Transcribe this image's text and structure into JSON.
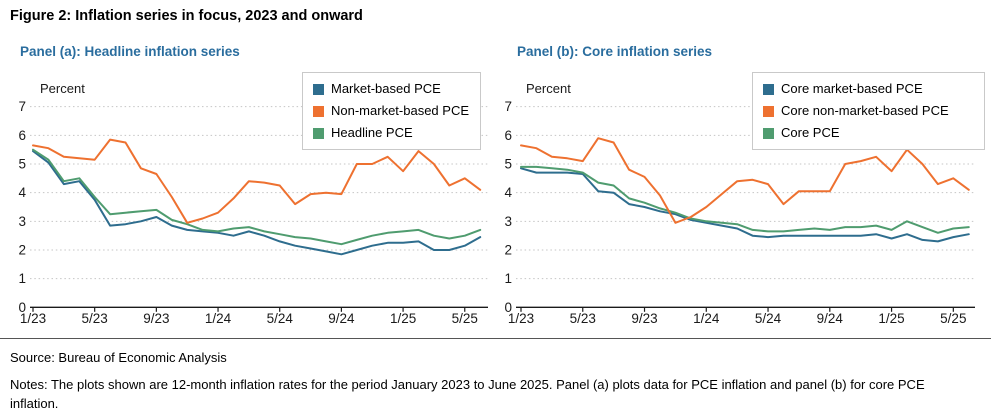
{
  "figure_title": "Figure 2: Inflation series in focus, 2023 and onward",
  "colors": {
    "panel_title": "#2a6d9e",
    "grid": "#c5c5c5",
    "axis": "#1a1a1a",
    "blue_series": "#2e6d8e",
    "orange_series": "#ee7130",
    "green_series": "#4f9c6f"
  },
  "footer": {
    "source": "Source: Bureau of Economic Analysis",
    "notes": "Notes: The plots shown are 12-month inflation rates for the period January 2023 to June 2025. Panel (a) plots data for PCE inflation and panel (b) for core PCE inflation."
  },
  "chart_data": [
    {
      "type": "line",
      "panel_title": "Panel (a): Headline inflation series",
      "ylabel": "Percent",
      "xlabel": "",
      "ylim": [
        0,
        7
      ],
      "yticks": [
        0,
        1,
        2,
        3,
        4,
        5,
        6,
        7
      ],
      "grid": "dotted-horizontal",
      "legend_position": "top-right",
      "x_start": "2023-01",
      "x_end": "2025-06",
      "x_tick_labels": [
        "1/23",
        "5/23",
        "9/23",
        "1/24",
        "5/24",
        "9/24",
        "1/25",
        "5/25"
      ],
      "series": [
        {
          "name": "Market-based PCE",
          "color": "#2e6d8e",
          "values": [
            5.45,
            5.05,
            4.3,
            4.4,
            3.75,
            2.85,
            2.9,
            3.0,
            3.15,
            2.85,
            2.7,
            2.65,
            2.6,
            2.5,
            2.65,
            2.5,
            2.3,
            2.15,
            2.05,
            1.95,
            1.85,
            2.0,
            2.15,
            2.25,
            2.25,
            2.3,
            2.0,
            2.0,
            2.15,
            2.45
          ]
        },
        {
          "name": "Non-market-based PCE",
          "color": "#ee7130",
          "values": [
            5.65,
            5.55,
            5.25,
            5.2,
            5.15,
            5.85,
            5.75,
            4.85,
            4.65,
            3.85,
            2.95,
            3.1,
            3.3,
            3.8,
            4.4,
            4.35,
            4.25,
            3.6,
            3.95,
            4.0,
            3.95,
            5.0,
            5.0,
            5.25,
            4.75,
            5.45,
            5.0,
            4.25,
            4.5,
            4.1
          ]
        },
        {
          "name": "Headline PCE",
          "color": "#4f9c6f",
          "values": [
            5.5,
            5.15,
            4.4,
            4.5,
            3.85,
            3.25,
            3.3,
            3.35,
            3.4,
            3.05,
            2.9,
            2.7,
            2.65,
            2.75,
            2.8,
            2.65,
            2.55,
            2.45,
            2.4,
            2.3,
            2.2,
            2.35,
            2.5,
            2.6,
            2.65,
            2.7,
            2.5,
            2.4,
            2.5,
            2.7
          ]
        }
      ]
    },
    {
      "type": "line",
      "panel_title": "Panel (b): Core inflation series",
      "ylabel": "Percent",
      "xlabel": "",
      "ylim": [
        0,
        7
      ],
      "yticks": [
        0,
        1,
        2,
        3,
        4,
        5,
        6,
        7
      ],
      "grid": "dotted-horizontal",
      "legend_position": "top-right",
      "x_start": "2023-01",
      "x_end": "2025-06",
      "x_tick_labels": [
        "1/23",
        "5/23",
        "9/23",
        "1/24",
        "5/24",
        "9/24",
        "1/25",
        "5/25"
      ],
      "series": [
        {
          "name": "Core market-based PCE",
          "color": "#2e6d8e",
          "values": [
            4.85,
            4.7,
            4.7,
            4.7,
            4.65,
            4.05,
            4.0,
            3.6,
            3.5,
            3.35,
            3.25,
            3.05,
            2.95,
            2.85,
            2.75,
            2.5,
            2.45,
            2.5,
            2.5,
            2.5,
            2.5,
            2.5,
            2.5,
            2.55,
            2.4,
            2.55,
            2.35,
            2.3,
            2.45,
            2.55
          ]
        },
        {
          "name": "Core non-market-based PCE",
          "color": "#ee7130",
          "values": [
            5.65,
            5.55,
            5.25,
            5.2,
            5.1,
            5.9,
            5.75,
            4.8,
            4.55,
            3.9,
            2.95,
            3.15,
            3.5,
            3.95,
            4.4,
            4.45,
            4.3,
            3.6,
            4.05,
            4.05,
            4.05,
            5.0,
            5.1,
            5.25,
            4.75,
            5.5,
            5.0,
            4.3,
            4.5,
            4.1
          ]
        },
        {
          "name": "Core PCE",
          "color": "#4f9c6f",
          "values": [
            4.9,
            4.9,
            4.85,
            4.8,
            4.7,
            4.35,
            4.25,
            3.8,
            3.65,
            3.45,
            3.3,
            3.1,
            3.0,
            2.95,
            2.9,
            2.7,
            2.65,
            2.65,
            2.7,
            2.75,
            2.7,
            2.8,
            2.8,
            2.85,
            2.7,
            3.0,
            2.8,
            2.6,
            2.75,
            2.8
          ]
        }
      ]
    }
  ]
}
